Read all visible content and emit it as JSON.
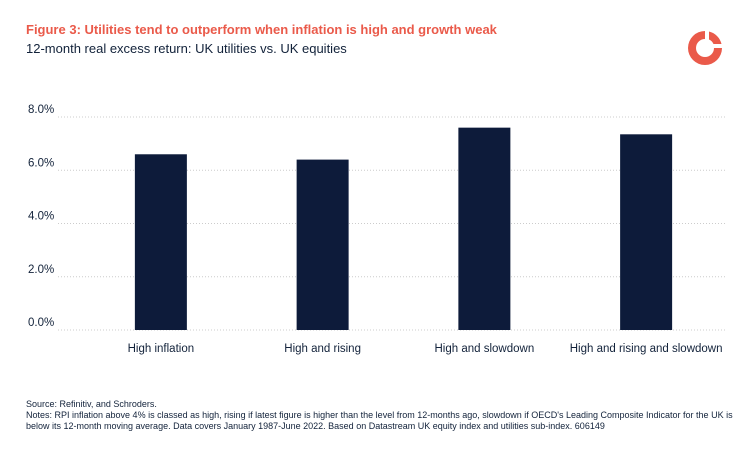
{
  "header": {
    "title": "Figure 3: Utilities tend to outperform when inflation is high and growth weak",
    "subtitle": "12-month real excess return: UK utilities vs. UK equities"
  },
  "colors": {
    "accent": "#ea5a4a",
    "bar": "#0d1b3a",
    "text": "#12223a",
    "grid": "#cccccc"
  },
  "chart_data": {
    "type": "bar",
    "title": "Figure 3: Utilities tend to outperform when inflation is high and growth weak",
    "subtitle": "12-month real excess return: UK utilities vs. UK equities",
    "categories": [
      "High inflation",
      "High and rising",
      "High and slowdown",
      "High and rising and slowdown"
    ],
    "values": [
      6.6,
      6.4,
      7.6,
      7.35
    ],
    "ylim": [
      0,
      8
    ],
    "yticks": [
      0,
      2,
      4,
      6,
      8
    ],
    "ytick_labels": [
      "0.0%",
      "2.0%",
      "4.0%",
      "6.0%",
      "8.0%"
    ],
    "xlabel": "",
    "ylabel": "",
    "grid": true,
    "legend": "none"
  },
  "footer": {
    "source": "Source: Refinitiv, and Schroders.",
    "notes": "Notes: RPI inflation above 4% is classed as high, rising if latest figure is higher than the level from 12-months ago, slowdown if OECD's Leading Composite Indicator for the UK is below its 12-month moving average. Data covers January 1987-June 2022. Based on Datastream UK equity index and utilities sub-index. 606149"
  }
}
